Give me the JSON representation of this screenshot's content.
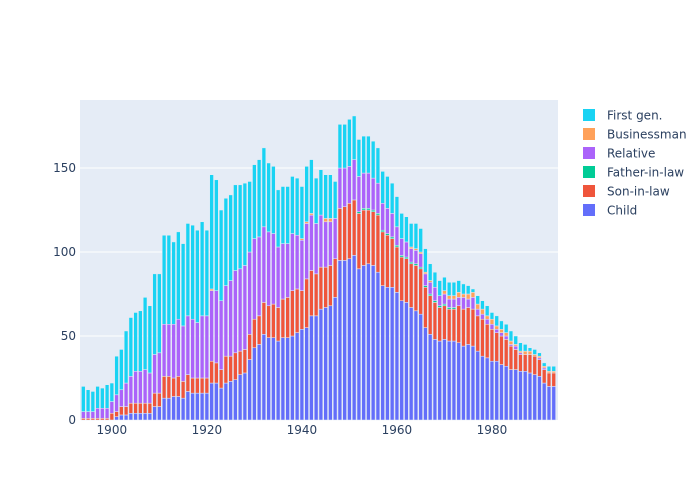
{
  "chart_data": {
    "type": "bar",
    "barmode": "stack",
    "title": "",
    "xlabel": "",
    "ylabel": "",
    "xlim": [
      1893.3,
      1993.9
    ],
    "ylim": [
      0,
      190.5
    ],
    "grid": true,
    "legend_position": "right",
    "x_ticks": [
      1900,
      1920,
      1940,
      1960,
      1980
    ],
    "y_ticks": [
      0,
      50,
      100,
      150
    ],
    "x_start": 1894,
    "series": [
      {
        "name": "Child",
        "color": "#636efa",
        "values": [
          0,
          0,
          0,
          0,
          0,
          0,
          0,
          2,
          3,
          3,
          4,
          4,
          4,
          4,
          4,
          8,
          8,
          13,
          13,
          14,
          14,
          13,
          17,
          16,
          16,
          16,
          16,
          22,
          22,
          19,
          22,
          23,
          24,
          27,
          28,
          36,
          43,
          45,
          51,
          49,
          49,
          47,
          49,
          49,
          50,
          52,
          54,
          55,
          62,
          62,
          66,
          67,
          68,
          73,
          95,
          95,
          96,
          98,
          90,
          92,
          93,
          92,
          88,
          80,
          79,
          79,
          76,
          71,
          70,
          67,
          65,
          63,
          55,
          51,
          48,
          47,
          48,
          47,
          47,
          46,
          44,
          45,
          44,
          41,
          38,
          37,
          35,
          35,
          33,
          32,
          30,
          30,
          29,
          29,
          28,
          27,
          26,
          22,
          20,
          20
        ]
      },
      {
        "name": "Son-in-law",
        "color": "#EF553B",
        "values": [
          1,
          1,
          1,
          1,
          1,
          1,
          4,
          3,
          5,
          5,
          6,
          6,
          6,
          6,
          6,
          8,
          8,
          13,
          13,
          11,
          12,
          10,
          10,
          9,
          9,
          9,
          9,
          13,
          12,
          11,
          16,
          15,
          16,
          14,
          14,
          15,
          17,
          17,
          19,
          19,
          20,
          20,
          23,
          24,
          27,
          26,
          23,
          29,
          27,
          25,
          25,
          24,
          24,
          23,
          31,
          32,
          33,
          33,
          33,
          33,
          32,
          32,
          34,
          32,
          31,
          29,
          27,
          26,
          26,
          26,
          27,
          27,
          24,
          23,
          22,
          20,
          20,
          19,
          19,
          22,
          22,
          22,
          22,
          21,
          22,
          20,
          19,
          17,
          17,
          16,
          14,
          12,
          10,
          10,
          11,
          11,
          10,
          8,
          8,
          8
        ]
      },
      {
        "name": "Father-in-law",
        "color": "#00cc96",
        "values": [
          0,
          0,
          0,
          0,
          0,
          0,
          0,
          0,
          0,
          0,
          0,
          0,
          0,
          0,
          0,
          0,
          0,
          0,
          0,
          0,
          0,
          0,
          0,
          0,
          0,
          0,
          0,
          0,
          0,
          0,
          0,
          0,
          0,
          0,
          0,
          0,
          0,
          0,
          0,
          0,
          0,
          0,
          0,
          0,
          0,
          0,
          0,
          0,
          0,
          0,
          0,
          0,
          0,
          0,
          0,
          0,
          0,
          0,
          1,
          1,
          1,
          1,
          1,
          1,
          1,
          1,
          1,
          1,
          1,
          1,
          1,
          1,
          1,
          1,
          1,
          1,
          1,
          1,
          1,
          0,
          0,
          0,
          0,
          0,
          0,
          0,
          0,
          0,
          0,
          0,
          0,
          0,
          0,
          0,
          0,
          0,
          0,
          0,
          0,
          0
        ]
      },
      {
        "name": "Relative",
        "color": "#ab63fa",
        "values": [
          4,
          4,
          4,
          6,
          6,
          6,
          7,
          10,
          10,
          14,
          16,
          19,
          19,
          20,
          18,
          23,
          24,
          31,
          31,
          32,
          34,
          33,
          35,
          35,
          33,
          37,
          37,
          42,
          43,
          41,
          42,
          45,
          49,
          49,
          50,
          49,
          48,
          47,
          45,
          44,
          42,
          36,
          33,
          32,
          34,
          32,
          30,
          33,
          33,
          30,
          31,
          27,
          26,
          24,
          24,
          23,
          22,
          24,
          21,
          21,
          21,
          19,
          18,
          16,
          15,
          14,
          11,
          10,
          9,
          8,
          8,
          8,
          7,
          7,
          8,
          6,
          6,
          5,
          5,
          5,
          7,
          5,
          7,
          4,
          3,
          3,
          3,
          2,
          2,
          2,
          1,
          2,
          1,
          0,
          0,
          0,
          1,
          1,
          0,
          0
        ]
      },
      {
        "name": "Businessman",
        "color": "#FFA15A",
        "values": [
          0,
          0,
          0,
          0,
          0,
          0,
          0,
          0,
          0,
          0,
          0,
          0,
          0,
          0,
          0,
          0,
          0,
          0,
          0,
          0,
          0,
          0,
          0,
          0,
          0,
          0,
          0,
          1,
          0,
          0,
          0,
          0,
          0,
          0,
          0,
          0,
          0,
          0,
          0,
          0,
          0,
          0,
          0,
          0,
          0,
          0,
          1,
          1,
          1,
          0,
          0,
          2,
          2,
          0,
          0,
          0,
          0,
          0,
          0,
          0,
          0,
          0,
          0,
          0,
          0,
          0,
          0,
          0,
          0,
          1,
          1,
          1,
          1,
          1,
          0,
          0,
          2,
          2,
          2,
          3,
          2,
          3,
          3,
          3,
          3,
          2,
          3,
          2,
          2,
          2,
          2,
          1,
          1,
          2,
          2,
          1,
          1,
          1,
          1,
          1
        ]
      },
      {
        "name": "First gen.",
        "color": "#19d3f3",
        "values": [
          15,
          13,
          12,
          13,
          12,
          14,
          11,
          23,
          24,
          31,
          35,
          35,
          36,
          43,
          40,
          48,
          47,
          53,
          53,
          49,
          52,
          49,
          55,
          56,
          55,
          56,
          51,
          68,
          66,
          54,
          52,
          51,
          51,
          50,
          49,
          42,
          44,
          46,
          47,
          41,
          40,
          34,
          34,
          34,
          34,
          34,
          31,
          33,
          32,
          27,
          27,
          26,
          26,
          22,
          26,
          26,
          28,
          26,
          22,
          22,
          22,
          22,
          21,
          19,
          19,
          18,
          18,
          15,
          15,
          14,
          15,
          14,
          14,
          10,
          9,
          9,
          8,
          8,
          8,
          7,
          6,
          5,
          2,
          5,
          5,
          6,
          4,
          6,
          5,
          5,
          6,
          5,
          5,
          4,
          2,
          3,
          2,
          2,
          3,
          3
        ]
      }
    ],
    "legend_order": [
      "First gen.",
      "Businessman",
      "Relative",
      "Father-in-law",
      "Son-in-law",
      "Child"
    ]
  }
}
